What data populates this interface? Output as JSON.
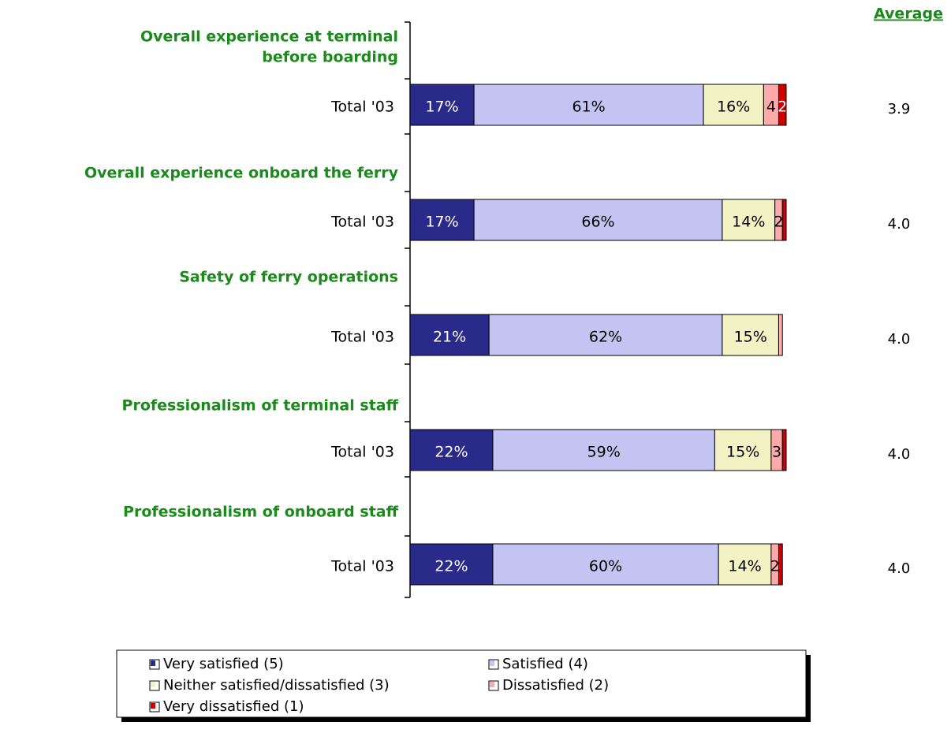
{
  "chart_data": {
    "type": "bar",
    "orientation": "horizontal",
    "stacked": true,
    "headings": [
      [
        "Overall experience at terminal",
        "before boarding"
      ],
      [
        "Overall experience onboard the ferry"
      ],
      [
        "Safety of ferry operations"
      ],
      [
        "Professionalism of terminal staff"
      ],
      [
        "Professionalism of onboard staff"
      ]
    ],
    "categories": [
      "Total '03",
      "Total '03",
      "Total '03",
      "Total '03",
      "Total '03"
    ],
    "xlim": [
      0,
      100
    ],
    "series": [
      {
        "name": "Very satisfied (5)",
        "color": "#2a2a8a",
        "label_color": "#ffffff",
        "values": [
          17,
          17,
          21,
          22,
          22
        ],
        "value_labels": [
          "17%",
          "17%",
          "21%",
          "22%",
          "22%"
        ]
      },
      {
        "name": "Satisfied (4)",
        "color": "#c4c4f2",
        "label_color": "#000000",
        "values": [
          61,
          66,
          62,
          59,
          60
        ],
        "value_labels": [
          "61%",
          "66%",
          "62%",
          "59%",
          "60%"
        ]
      },
      {
        "name": "Neither satisfied/dissatisfied (3)",
        "color": "#f2f2c4",
        "label_color": "#000000",
        "values": [
          16,
          14,
          15,
          15,
          14
        ],
        "value_labels": [
          "16%",
          "14%",
          "15%",
          "15%",
          "14%"
        ]
      },
      {
        "name": "Dissatisfied (2)",
        "color": "#ffaaaa",
        "label_color": "#000000",
        "values": [
          4,
          2,
          1,
          3,
          2
        ],
        "value_labels": [
          "4",
          "2",
          null,
          "3",
          "2"
        ]
      },
      {
        "name": "Very dissatisfied (1)",
        "color": "#cc0000",
        "label_color": "#ffffff",
        "values": [
          2,
          1,
          0,
          1,
          1
        ],
        "value_labels": [
          "2",
          null,
          null,
          null,
          null
        ]
      }
    ],
    "averages_title": "Average",
    "averages": [
      "3.9",
      "4.0",
      "4.0",
      "4.0",
      "4.0"
    ]
  }
}
